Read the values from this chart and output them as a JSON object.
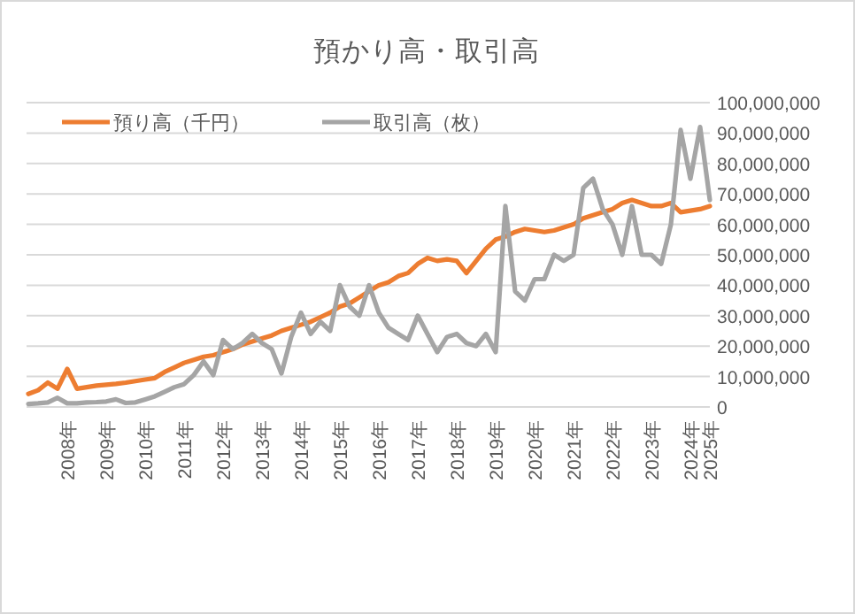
{
  "chart_data": {
    "type": "line",
    "title": "預かり高・取引高",
    "categories": [
      null,
      null,
      null,
      null,
      "2008年",
      null,
      null,
      null,
      "2009年",
      null,
      null,
      null,
      "2010年",
      null,
      null,
      null,
      "2011年",
      null,
      null,
      null,
      "2012年",
      null,
      null,
      null,
      "2013年",
      null,
      null,
      null,
      "2014年",
      null,
      null,
      null,
      "2015年",
      null,
      null,
      null,
      "2016年",
      null,
      null,
      null,
      "2017年",
      null,
      null,
      null,
      "2018年",
      null,
      null,
      null,
      "2019年",
      null,
      null,
      null,
      "2020年",
      null,
      null,
      null,
      "2021年",
      null,
      null,
      null,
      "2022年",
      null,
      null,
      null,
      "2023年",
      null,
      null,
      null,
      "2024年",
      null,
      "2025年"
    ],
    "series": [
      {
        "name": "預り高（千円）",
        "color": "#ed7d31",
        "values": [
          4300000,
          5500000,
          8000000,
          6000000,
          12500000,
          6000000,
          6500000,
          7000000,
          7300000,
          7600000,
          8000000,
          8500000,
          9000000,
          9500000,
          11500000,
          13000000,
          14500000,
          15500000,
          16500000,
          17000000,
          18000000,
          19000000,
          20500000,
          21500000,
          22500000,
          23500000,
          25000000,
          26000000,
          27000000,
          28000000,
          29500000,
          31000000,
          33000000,
          34000000,
          36000000,
          38000000,
          40000000,
          41000000,
          43000000,
          44000000,
          47000000,
          49000000,
          48000000,
          48500000,
          48000000,
          44000000,
          48000000,
          52000000,
          55000000,
          56000000,
          57500000,
          58500000,
          58000000,
          57500000,
          58000000,
          59000000,
          60000000,
          62000000,
          63000000,
          64000000,
          65000000,
          67000000,
          68000000,
          67000000,
          66000000,
          66000000,
          67000000,
          64000000,
          64500000,
          65000000,
          66000000
        ]
      },
      {
        "name": "取引高（枚）",
        "color": "#a5a5a5",
        "values": [
          1000000,
          1200000,
          1500000,
          3000000,
          1200000,
          1200000,
          1500000,
          1600000,
          1800000,
          2500000,
          1300000,
          1500000,
          2500000,
          3500000,
          5000000,
          6500000,
          7500000,
          10500000,
          15000000,
          10500000,
          22000000,
          19000000,
          21000000,
          24000000,
          21000000,
          19000000,
          11000000,
          23000000,
          31000000,
          24000000,
          28000000,
          25000000,
          40000000,
          33000000,
          30000000,
          40000000,
          31000000,
          26000000,
          24000000,
          22000000,
          30000000,
          24000000,
          18000000,
          23000000,
          24000000,
          21000000,
          20000000,
          24000000,
          18000000,
          66000000,
          38000000,
          35000000,
          42000000,
          42000000,
          50000000,
          48000000,
          50000000,
          72000000,
          75000000,
          65000000,
          60000000,
          50000000,
          66000000,
          50000000,
          50000000,
          47000000,
          60000000,
          91000000,
          75000000,
          92000000,
          68000000
        ]
      }
    ],
    "ylim": [
      0,
      100000000
    ],
    "yticks": [
      {
        "value": 0,
        "label": "0"
      },
      {
        "value": 10000000,
        "label": "10,000,000"
      },
      {
        "value": 20000000,
        "label": "20,000,000"
      },
      {
        "value": 30000000,
        "label": "30,000,000"
      },
      {
        "value": 40000000,
        "label": "40,000,000"
      },
      {
        "value": 50000000,
        "label": "50,000,000"
      },
      {
        "value": 60000000,
        "label": "60,000,000"
      },
      {
        "value": 70000000,
        "label": "70,000,000"
      },
      {
        "value": 80000000,
        "label": "80,000,000"
      },
      {
        "value": 90000000,
        "label": "90,000,000"
      },
      {
        "value": 100000000,
        "label": "100,000,000"
      }
    ],
    "grid": "y",
    "legend": "top"
  }
}
